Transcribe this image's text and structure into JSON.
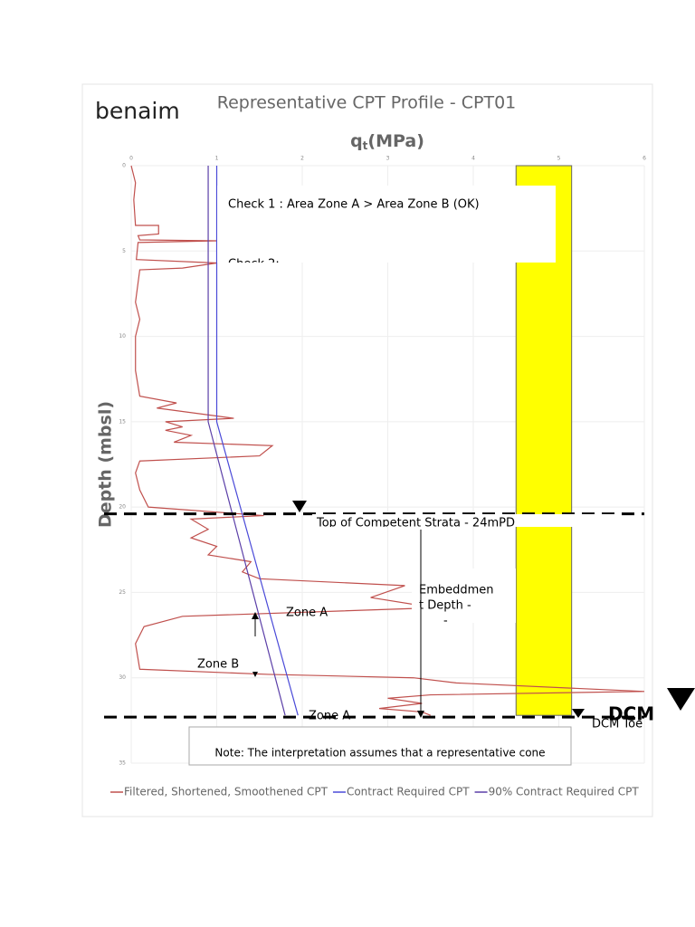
{
  "logo": "benaim",
  "chart_data": {
    "type": "line",
    "title": "Representative CPT Profile - CPT01",
    "x_label": {
      "main": "q",
      "sub": "t",
      "unit": "(MPa)"
    },
    "y_label": "Depth (mbsl)",
    "xlim": [
      0,
      6
    ],
    "xticks": [
      0,
      1,
      2,
      3,
      4,
      5,
      6
    ],
    "ylim": [
      0,
      35
    ],
    "y_inverted": true,
    "yticks": [
      0,
      5,
      10,
      15,
      20,
      25,
      30,
      35
    ],
    "grid": true,
    "legend": "bottom",
    "series": [
      {
        "name": "Filtered, Shortened, Smoothened CPT",
        "color": "#c0504d",
        "x": [
          0,
          0.05,
          0.03,
          0.05,
          0.32,
          0.32,
          0.08,
          0.1,
          1.0,
          0.08,
          0.06,
          1.0,
          0.6,
          0.1,
          0.05,
          0.1,
          0.05,
          0.05,
          0.1,
          0.53,
          0.3,
          1.2,
          0.4,
          0.6,
          0.4,
          0.7,
          0.5,
          1.65,
          1.5,
          0.1,
          0.05,
          0.1,
          0.2,
          1.55,
          0.7,
          0.9,
          0.7,
          1.0,
          0.9,
          1.4,
          1.3,
          1.5,
          3.2,
          2.8,
          3.55,
          0.6,
          0.15,
          0.05,
          0.1,
          1.6,
          3.3,
          3.8,
          6.0,
          3.5,
          3.0,
          3.4,
          2.9,
          3.4,
          3.5
        ],
        "y": [
          0,
          1,
          2,
          3.5,
          3.5,
          4.0,
          4.1,
          4.35,
          4.4,
          4.5,
          5.5,
          5.7,
          6.0,
          6.1,
          8,
          9,
          10,
          12,
          13.5,
          13.9,
          14.2,
          14.8,
          15,
          15.3,
          15.5,
          15.8,
          16.2,
          16.4,
          17.0,
          17.3,
          18,
          19,
          20,
          20.5,
          20.7,
          21.3,
          21.8,
          22.3,
          22.8,
          23.2,
          23.8,
          24.2,
          24.6,
          25.3,
          25.9,
          26.4,
          27.0,
          28,
          29.5,
          29.8,
          30,
          30.3,
          30.8,
          31,
          31.2,
          31.5,
          31.8,
          32.0,
          32.2
        ]
      },
      {
        "name": "Contract Required CPT",
        "color": "#4a4ad8",
        "x": [
          1.0,
          1.0,
          1.95
        ],
        "y": [
          0,
          15,
          32.2
        ]
      },
      {
        "name": "90% Contract Required CPT",
        "color": "#5b3fa8",
        "x": [
          0.9,
          0.9,
          1.8
        ],
        "y": [
          0,
          15,
          32.2
        ]
      }
    ],
    "dcm_column": {
      "color": "#ffff00",
      "x": [
        4.5,
        5.15
      ],
      "y": [
        0,
        32.2
      ]
    },
    "levels": [
      20.4,
      32.3
    ],
    "annotations": {
      "check1": "Check 1 : Area Zone A > Area Zone B (OK)",
      "check2": "Check 2:",
      "strata": "Top of Competent Strata - 24mPD",
      "embedment": [
        "Embeddmen",
        "t Depth -"
      ],
      "zone_a_upper": "Zone A",
      "zone_b": "Zone B",
      "zone_a_lower": "Zone A",
      "dcm": "DCM",
      "dcm_toe": "DCM Toe",
      "note": "Note: The interpretation assumes that a representative cone"
    }
  }
}
